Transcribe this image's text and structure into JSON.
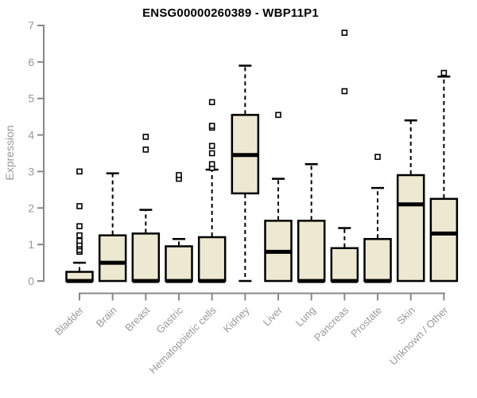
{
  "chart_data": {
    "type": "box",
    "title": "ENSG00000260389 - WBP11P1",
    "ylabel": "Expression",
    "xlabel": "",
    "ylim": [
      0,
      7
    ],
    "yticks": [
      0,
      1,
      2,
      3,
      4,
      5,
      6,
      7
    ],
    "grid": false,
    "legend": false,
    "categories": [
      "Bladder",
      "Brain",
      "Breast",
      "Gastric",
      "Hematopoietic cells",
      "Kidney",
      "Liver",
      "Lung",
      "Pancreas",
      "Prostate",
      "Skin",
      "Unknown / Other"
    ],
    "boxes": [
      {
        "category": "Bladder",
        "whisker_low": 0,
        "q1": 0,
        "median": 0,
        "q3": 0.25,
        "whisker_high": 0.5,
        "outliers": [
          0.8,
          0.85,
          0.95,
          1.0,
          1.1,
          1.25,
          1.5,
          2.05,
          3.0
        ]
      },
      {
        "category": "Brain",
        "whisker_low": 0,
        "q1": 0,
        "median": 0.5,
        "q3": 1.25,
        "whisker_high": 2.95,
        "outliers": []
      },
      {
        "category": "Breast",
        "whisker_low": 0,
        "q1": 0,
        "median": 0,
        "q3": 1.3,
        "whisker_high": 1.95,
        "outliers": [
          3.6,
          3.95
        ]
      },
      {
        "category": "Gastric",
        "whisker_low": 0,
        "q1": 0,
        "median": 0,
        "q3": 0.95,
        "whisker_high": 1.15,
        "outliers": [
          2.8,
          2.9
        ]
      },
      {
        "category": "Hematopoietic cells",
        "whisker_low": 0,
        "q1": 0,
        "median": 0,
        "q3": 1.2,
        "whisker_high": 3.05,
        "outliers": [
          3.1,
          3.2,
          3.5,
          3.7,
          4.2,
          4.25,
          4.9
        ]
      },
      {
        "category": "Kidney",
        "whisker_low": 0,
        "q1": 2.4,
        "median": 3.45,
        "q3": 4.55,
        "whisker_high": 5.9,
        "outliers": []
      },
      {
        "category": "Liver",
        "whisker_low": 0,
        "q1": 0,
        "median": 0.8,
        "q3": 1.65,
        "whisker_high": 2.8,
        "outliers": [
          4.55
        ]
      },
      {
        "category": "Lung",
        "whisker_low": 0,
        "q1": 0,
        "median": 0,
        "q3": 1.65,
        "whisker_high": 3.2,
        "outliers": []
      },
      {
        "category": "Pancreas",
        "whisker_low": 0,
        "q1": 0,
        "median": 0,
        "q3": 0.9,
        "whisker_high": 1.45,
        "outliers": [
          5.2,
          6.8
        ]
      },
      {
        "category": "Prostate",
        "whisker_low": 0,
        "q1": 0,
        "median": 0,
        "q3": 1.15,
        "whisker_high": 2.55,
        "outliers": [
          3.4
        ]
      },
      {
        "category": "Skin",
        "whisker_low": 0,
        "q1": 0,
        "median": 2.1,
        "q3": 2.9,
        "whisker_high": 4.4,
        "outliers": []
      },
      {
        "category": "Unknown / Other",
        "whisker_low": 0,
        "q1": 0,
        "median": 1.3,
        "q3": 2.25,
        "whisker_high": 5.6,
        "outliers": [
          5.7
        ]
      }
    ],
    "colors": {
      "box_fill": "#EDE8D1",
      "box_stroke": "#000000",
      "median": "#000000",
      "whisker": "#000000",
      "outlier_stroke": "#000000",
      "axis": "#888888",
      "tick_label": "#999999",
      "title": "#000000",
      "background": "#FFFFFF"
    }
  }
}
